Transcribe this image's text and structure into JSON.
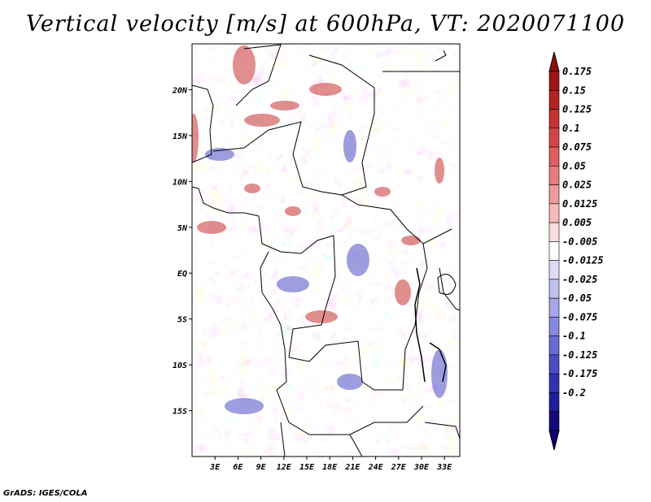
{
  "title": "Vertical velocity [m/s] at 600hPa, VT: 2020071100",
  "credit": "GrADS: IGES/COLA",
  "map": {
    "lat_labels": [
      "20N",
      "15N",
      "10N",
      "5N",
      "EQ",
      "5S",
      "10S",
      "15S"
    ],
    "lat_values": [
      20,
      15,
      10,
      5,
      0,
      -5,
      -10,
      -15
    ],
    "lon_labels": [
      "3E",
      "6E",
      "9E",
      "12E",
      "15E",
      "18E",
      "21E",
      "24E",
      "27E",
      "30E",
      "33E"
    ],
    "lon_values": [
      3,
      6,
      9,
      12,
      15,
      18,
      21,
      24,
      27,
      30,
      33
    ],
    "lat_range": [
      -20,
      25
    ],
    "lon_range": [
      0,
      35
    ]
  },
  "colorbar": {
    "labels": [
      "0.175",
      "0.15",
      "0.125",
      "0.1",
      "0.075",
      "0.05",
      "0.025",
      "0.0125",
      "0.005",
      "-0.005",
      "-0.0125",
      "-0.025",
      "-0.05",
      "-0.075",
      "-0.1",
      "-0.125",
      "-0.175",
      "-0.2"
    ],
    "colors": [
      "#a01515",
      "#b52222",
      "#c63232",
      "#d44646",
      "#df5e5e",
      "#e87b7b",
      "#f09a9a",
      "#f6baba",
      "#fbdcdc",
      "#ffffff",
      "#dcdcf8",
      "#c2c2f2",
      "#a6a6ea",
      "#8888e0",
      "#6a6ad4",
      "#4c4cc4",
      "#3232b0",
      "#1e1e9a",
      "#140a7a"
    ],
    "arrow_top_color": "#8e0f0f",
    "arrow_bottom_color": "#100070"
  },
  "colors": {
    "red_blob": "#c63232",
    "blue_blob": "#4c4cc4",
    "border": "#000000"
  }
}
